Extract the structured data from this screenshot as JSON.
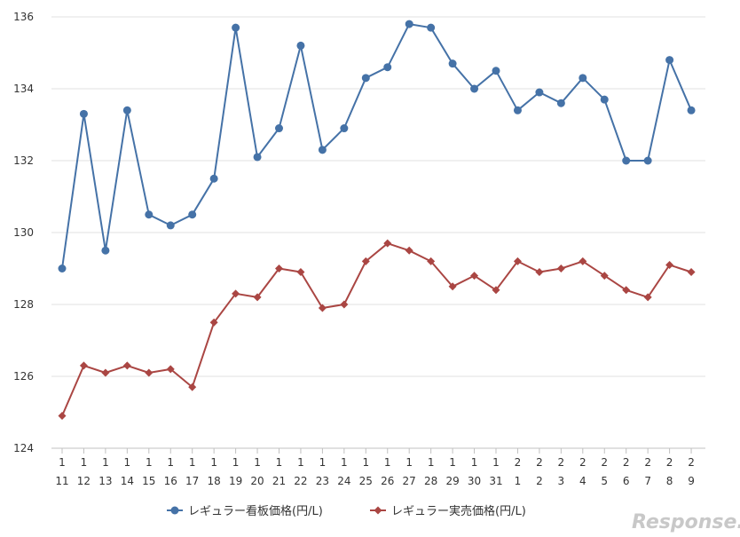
{
  "chart_data": {
    "type": "line",
    "categories": [
      [
        "1",
        "11"
      ],
      [
        "1",
        "12"
      ],
      [
        "1",
        "13"
      ],
      [
        "1",
        "14"
      ],
      [
        "1",
        "15"
      ],
      [
        "1",
        "16"
      ],
      [
        "1",
        "17"
      ],
      [
        "1",
        "18"
      ],
      [
        "1",
        "19"
      ],
      [
        "1",
        "20"
      ],
      [
        "1",
        "21"
      ],
      [
        "1",
        "22"
      ],
      [
        "1",
        "23"
      ],
      [
        "1",
        "24"
      ],
      [
        "1",
        "25"
      ],
      [
        "1",
        "26"
      ],
      [
        "1",
        "27"
      ],
      [
        "1",
        "28"
      ],
      [
        "1",
        "29"
      ],
      [
        "1",
        "30"
      ],
      [
        "1",
        "31"
      ],
      [
        "2",
        "1"
      ],
      [
        "2",
        "2"
      ],
      [
        "2",
        "3"
      ],
      [
        "2",
        "4"
      ],
      [
        "2",
        "5"
      ],
      [
        "2",
        "6"
      ],
      [
        "2",
        "7"
      ],
      [
        "2",
        "8"
      ],
      [
        "2",
        "9"
      ]
    ],
    "ylim": [
      124,
      136
    ],
    "yticks": [
      124,
      126,
      128,
      130,
      132,
      134,
      136
    ],
    "grid": true,
    "legend_position": "bottom",
    "series": [
      {
        "name": "レギュラー看板価格(円/L)",
        "color": "#4572a7",
        "marker": "circle",
        "values": [
          129.0,
          133.3,
          129.5,
          133.4,
          130.5,
          130.2,
          130.5,
          131.5,
          135.7,
          132.1,
          132.9,
          135.2,
          132.3,
          132.9,
          134.3,
          134.6,
          135.8,
          135.7,
          134.7,
          134.0,
          134.5,
          133.4,
          133.9,
          133.6,
          134.3,
          133.7,
          132.0,
          132.0,
          134.8,
          133.4
        ]
      },
      {
        "name": "レギュラー実売価格(円/L)",
        "color": "#aa4643",
        "marker": "diamond",
        "values": [
          124.9,
          126.3,
          126.1,
          126.3,
          126.1,
          126.2,
          125.7,
          127.5,
          128.3,
          128.2,
          129.0,
          128.9,
          127.9,
          128.0,
          129.2,
          129.7,
          129.5,
          129.2,
          128.5,
          128.8,
          128.4,
          129.2,
          128.9,
          129.0,
          129.2,
          128.8,
          128.4,
          128.2,
          129.1,
          128.9
        ]
      }
    ]
  },
  "watermark": "Response."
}
